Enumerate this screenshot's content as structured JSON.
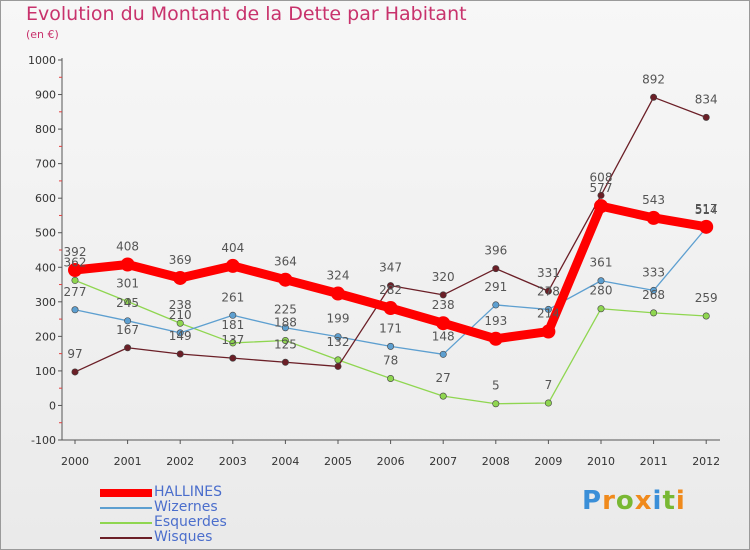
{
  "chart_data": {
    "type": "line",
    "title": "Evolution du Montant de la Dette par Habitant",
    "subtitle": "(en €)",
    "x": [
      "2000",
      "2001",
      "2002",
      "2003",
      "2004",
      "2005",
      "2006",
      "2007",
      "2008",
      "2009",
      "2010",
      "2011",
      "2012"
    ],
    "ylim": [
      -100,
      1000
    ],
    "yticks": [
      -100,
      0,
      100,
      200,
      300,
      400,
      500,
      600,
      700,
      800,
      900,
      1000
    ],
    "grid": false,
    "legend_position": "bottom-left",
    "series": [
      {
        "name": "HALLINES",
        "color": "#ff0000",
        "values": [
          392,
          408,
          369,
          404,
          364,
          324,
          282,
          238,
          193,
          214,
          577,
          543,
          517
        ]
      },
      {
        "name": "Wizernes",
        "color": "#5d9fd0",
        "values": [
          277,
          245,
          210,
          261,
          225,
          199,
          171,
          148,
          291,
          278,
          361,
          333,
          514
        ]
      },
      {
        "name": "Esquerdes",
        "color": "#8fd650",
        "values": [
          362,
          301,
          238,
          181,
          188,
          132,
          78,
          27,
          5,
          7,
          280,
          268,
          259
        ]
      },
      {
        "name": "Wisques",
        "color": "#6b1f27",
        "values": [
          97,
          167,
          149,
          137,
          125,
          113,
          347,
          320,
          396,
          331,
          608,
          892,
          834
        ]
      }
    ],
    "data_labels": [
      {
        "series": 0,
        "index": 0,
        "text": "392"
      },
      {
        "series": 0,
        "index": 1,
        "text": "408"
      },
      {
        "series": 0,
        "index": 2,
        "text": "369"
      },
      {
        "series": 0,
        "index": 3,
        "text": "404"
      },
      {
        "series": 0,
        "index": 4,
        "text": "364"
      },
      {
        "series": 0,
        "index": 5,
        "text": "324"
      },
      {
        "series": 0,
        "index": 6,
        "text": "282"
      },
      {
        "series": 0,
        "index": 7,
        "text": "238"
      },
      {
        "series": 0,
        "index": 8,
        "text": "193"
      },
      {
        "series": 0,
        "index": 9,
        "text": "214"
      },
      {
        "series": 0,
        "index": 10,
        "text": "577"
      },
      {
        "series": 0,
        "index": 11,
        "text": "543"
      },
      {
        "series": 0,
        "index": 12,
        "text": "517"
      },
      {
        "series": 1,
        "index": 0,
        "text": "277"
      },
      {
        "series": 1,
        "index": 1,
        "text": "245"
      },
      {
        "series": 1,
        "index": 2,
        "text": "210"
      },
      {
        "series": 1,
        "index": 3,
        "text": "261"
      },
      {
        "series": 1,
        "index": 4,
        "text": "225"
      },
      {
        "series": 1,
        "index": 5,
        "text": "199"
      },
      {
        "series": 1,
        "index": 6,
        "text": "171"
      },
      {
        "series": 1,
        "index": 7,
        "text": "148"
      },
      {
        "series": 1,
        "index": 8,
        "text": "291"
      },
      {
        "series": 1,
        "index": 9,
        "text": "278"
      },
      {
        "series": 1,
        "index": 10,
        "text": "361"
      },
      {
        "series": 1,
        "index": 11,
        "text": "333"
      },
      {
        "series": 1,
        "index": 12,
        "text": "514"
      },
      {
        "series": 2,
        "index": 0,
        "text": "362"
      },
      {
        "series": 2,
        "index": 1,
        "text": "301"
      },
      {
        "series": 2,
        "index": 2,
        "text": "238"
      },
      {
        "series": 2,
        "index": 3,
        "text": "181"
      },
      {
        "series": 2,
        "index": 4,
        "text": "188"
      },
      {
        "series": 2,
        "index": 5,
        "text": "132"
      },
      {
        "series": 2,
        "index": 6,
        "text": "78"
      },
      {
        "series": 2,
        "index": 7,
        "text": "27"
      },
      {
        "series": 2,
        "index": 8,
        "text": "5"
      },
      {
        "series": 2,
        "index": 9,
        "text": "7"
      },
      {
        "series": 2,
        "index": 10,
        "text": "280"
      },
      {
        "series": 2,
        "index": 11,
        "text": "268"
      },
      {
        "series": 2,
        "index": 12,
        "text": "259"
      },
      {
        "series": 3,
        "index": 0,
        "text": "97"
      },
      {
        "series": 3,
        "index": 1,
        "text": "167"
      },
      {
        "series": 3,
        "index": 2,
        "text": "149"
      },
      {
        "series": 3,
        "index": 3,
        "text": "137"
      },
      {
        "series": 3,
        "index": 4,
        "text": "125"
      },
      {
        "series": 3,
        "index": 6,
        "text": "347"
      },
      {
        "series": 3,
        "index": 7,
        "text": "320"
      },
      {
        "series": 3,
        "index": 8,
        "text": "396"
      },
      {
        "series": 3,
        "index": 9,
        "text": "331"
      },
      {
        "series": 3,
        "index": 10,
        "text": "608"
      },
      {
        "series": 3,
        "index": 11,
        "text": "892"
      },
      {
        "series": 3,
        "index": 12,
        "text": "834"
      }
    ]
  },
  "brand": {
    "letters": [
      {
        "ch": "P",
        "color": "#3a8fd8"
      },
      {
        "ch": "r",
        "color": "#f08a1c"
      },
      {
        "ch": "o",
        "color": "#79b833"
      },
      {
        "ch": "x",
        "color": "#f08a1c"
      },
      {
        "ch": "i",
        "color": "#3a8fd8"
      },
      {
        "ch": "t",
        "color": "#79b833"
      },
      {
        "ch": "i",
        "color": "#f08a1c"
      }
    ]
  }
}
